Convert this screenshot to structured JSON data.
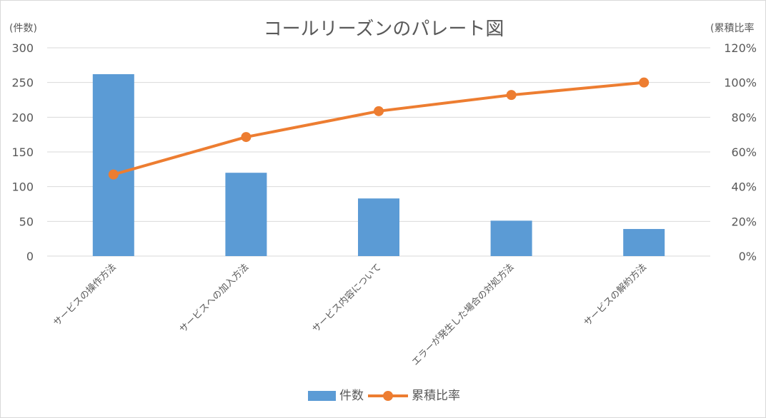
{
  "chart_data": {
    "type": "bar",
    "title": "コールリーズンのパレート図",
    "ylabel": "(件数)",
    "y2label": "(累積比率",
    "categories": [
      "サービスの操作方法",
      "サービスへの加入方法",
      "サービス内容について",
      "エラーが発生した場合の対処方法",
      "サービスの解約方法"
    ],
    "series": [
      {
        "name": "件数",
        "type": "bar",
        "axis": "left",
        "values": [
          262,
          120,
          83,
          51,
          39
        ],
        "color": "#5b9bd5"
      },
      {
        "name": "累積比率",
        "type": "line",
        "axis": "right",
        "values": [
          47,
          68.6,
          83.5,
          92.8,
          100
        ],
        "color": "#ed7d31"
      }
    ],
    "ylim": [
      0,
      300
    ],
    "yticks": [
      "0",
      "50",
      "100",
      "150",
      "200",
      "250",
      "300"
    ],
    "y2lim": [
      0,
      120
    ],
    "y2ticks": [
      "0%",
      "20%",
      "40%",
      "60%",
      "80%",
      "100%",
      "120%"
    ],
    "grid": true,
    "legend_position": "bottom"
  }
}
